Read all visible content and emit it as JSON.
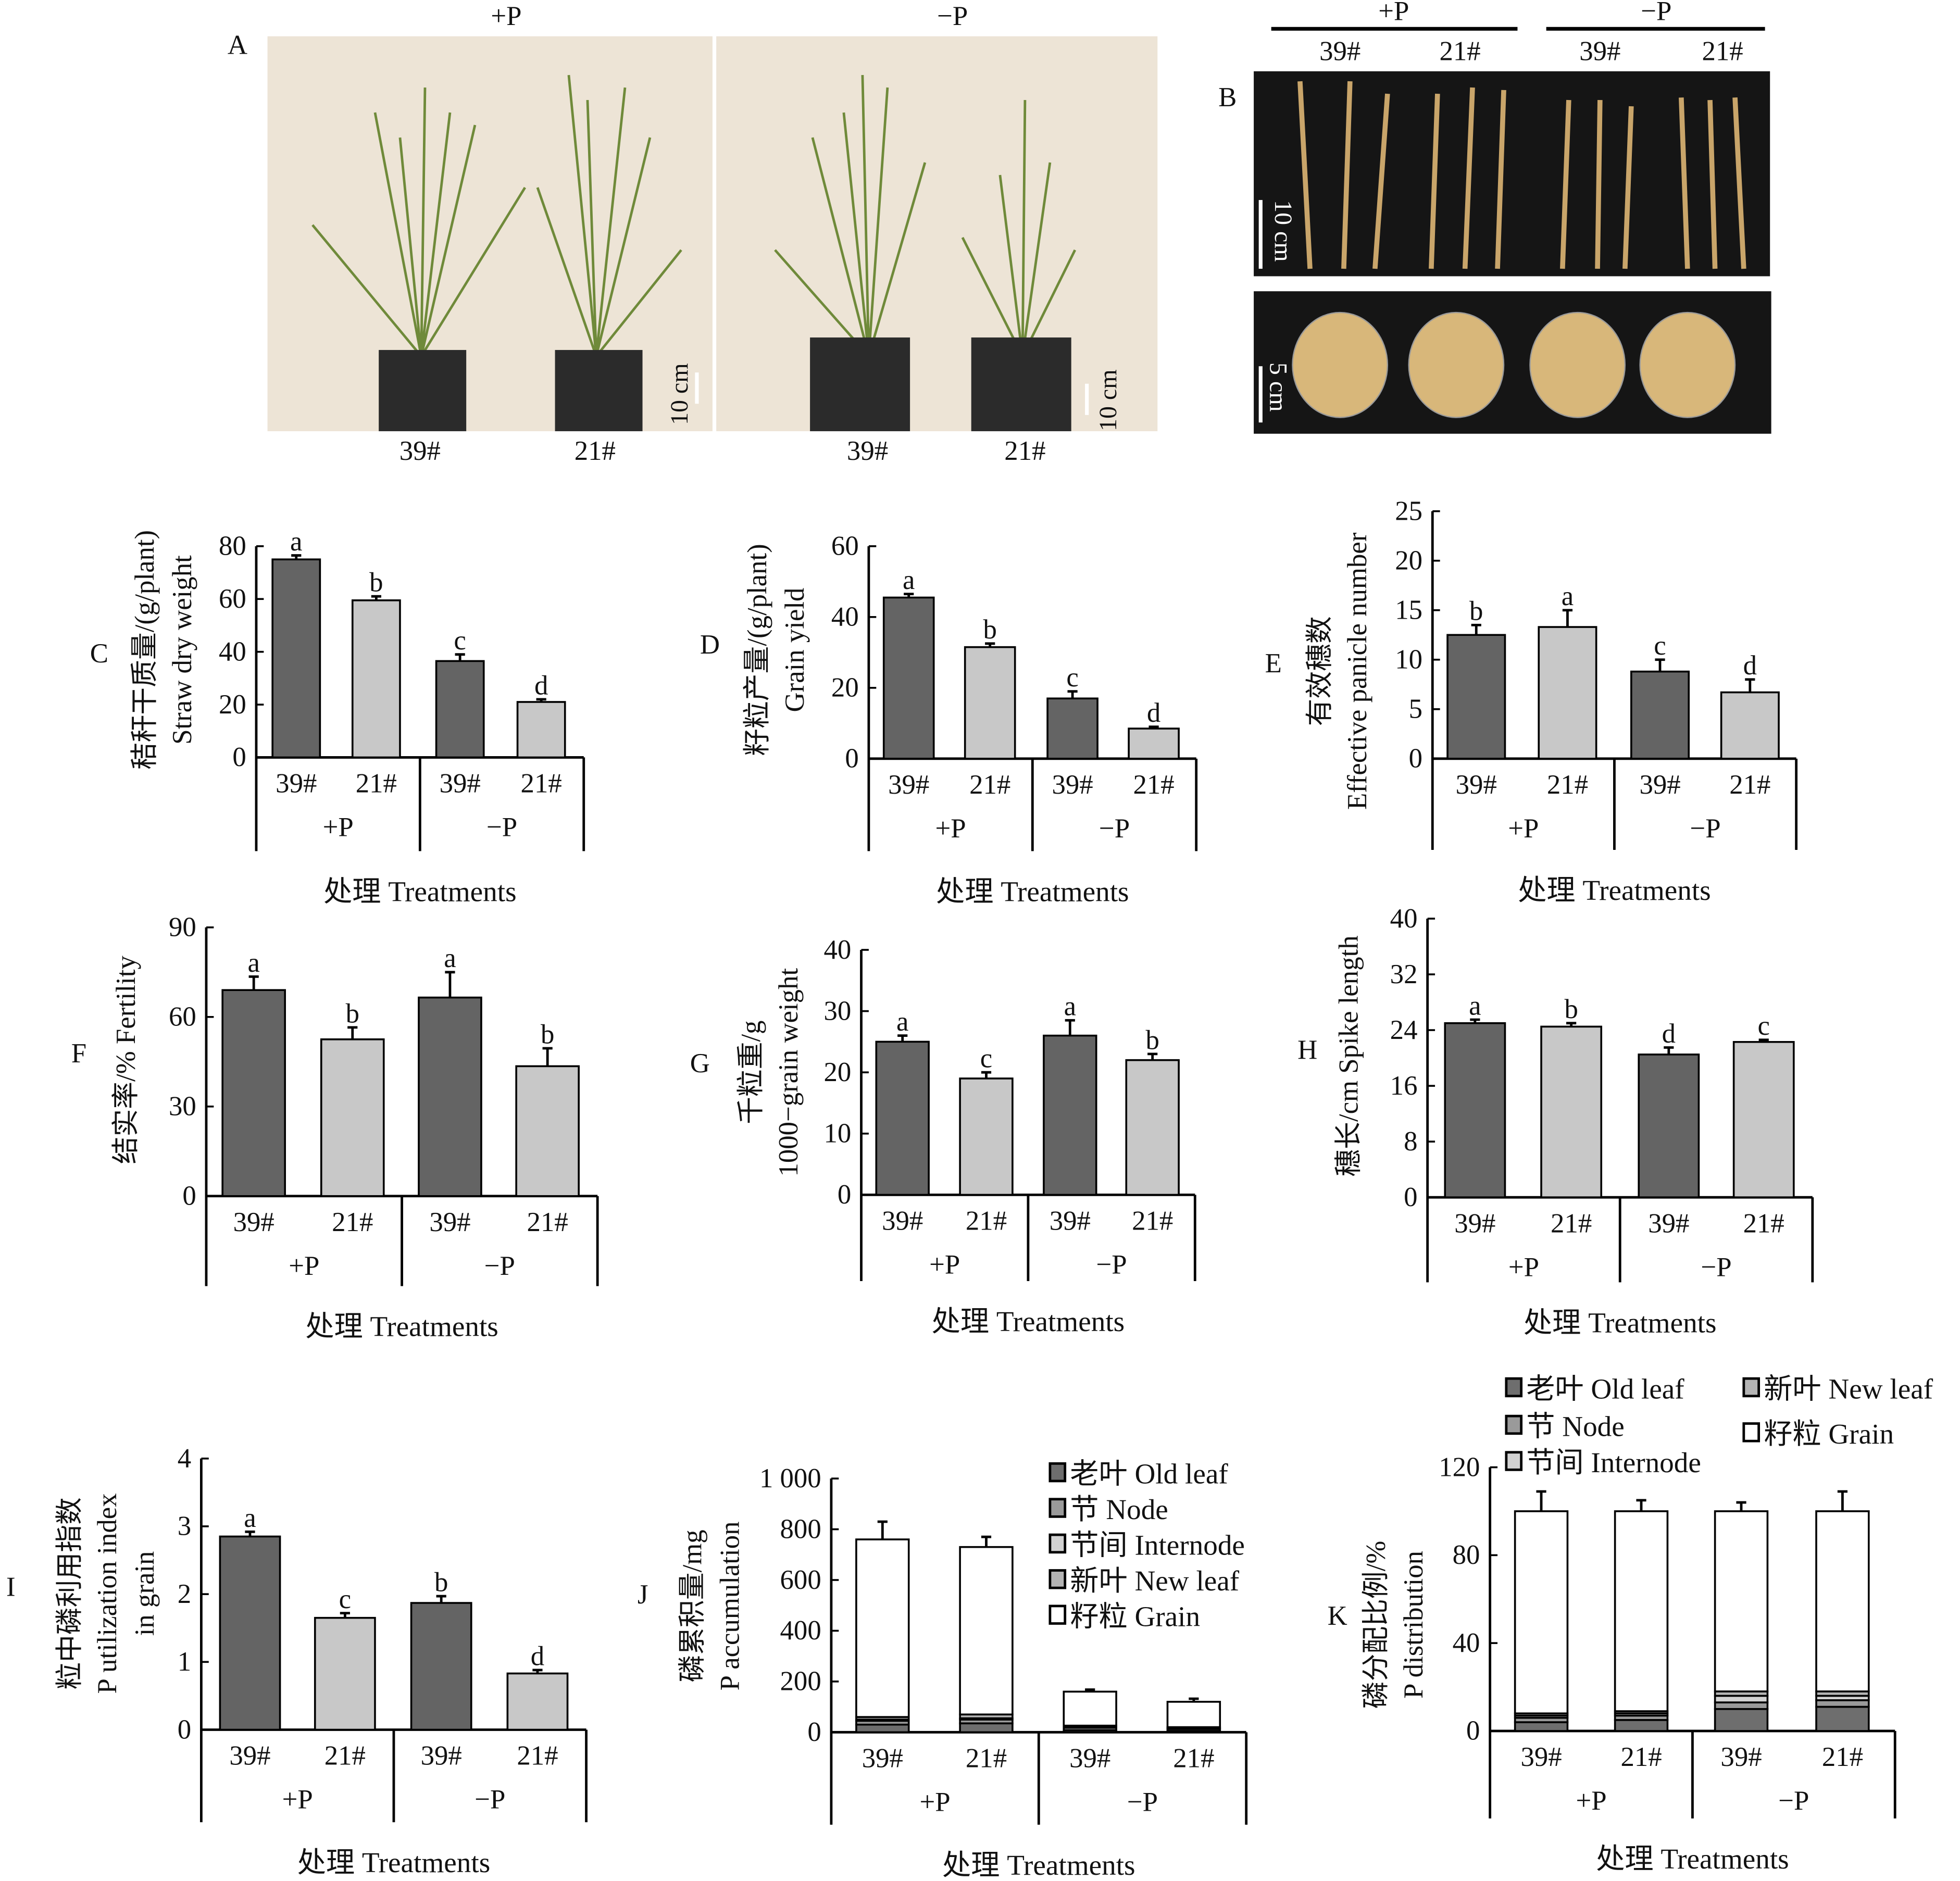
{
  "panel_a": {
    "letter": "A",
    "group_labels": [
      "+P",
      "−P"
    ],
    "plant_labels": [
      "39#",
      "21#",
      "39#",
      "21#"
    ],
    "scale_bar": "10 cm"
  },
  "panel_b": {
    "letter": "B",
    "group_labels": [
      "+P",
      "−P"
    ],
    "plant_labels": [
      "39#",
      "21#",
      "39#",
      "21#"
    ],
    "scale_bar_panicle": "10 cm",
    "scale_bar_grain": "5 cm"
  },
  "colors": {
    "dark": "#646464",
    "light": "#c8c8c8",
    "old_leaf": "#6e6e6e",
    "node": "#9a9a9a",
    "internode": "#d2d2d2",
    "new_leaf": "#b4b4b4",
    "grain": "#ffffff"
  },
  "chart_data": [
    {
      "letter": "C",
      "type": "bar",
      "ytitle": [
        "秸秆干质量/(g/plant)",
        "Straw dry weight"
      ],
      "xlabel": "处理 Treatments",
      "categories": [
        "39#",
        "21#",
        "39#",
        "21#"
      ],
      "groups": [
        "+P",
        "−P"
      ],
      "values": [
        75,
        59.5,
        36.5,
        21
      ],
      "errors": [
        1.5,
        1.5,
        2.5,
        1
      ],
      "letters": [
        "a",
        "b",
        "c",
        "d"
      ],
      "ylim": [
        0,
        80
      ],
      "yticks": [
        "0",
        "20",
        "40",
        "60",
        "80"
      ]
    },
    {
      "letter": "D",
      "type": "bar",
      "ytitle": [
        "籽粒产量/(g/plant)",
        "Grain yield"
      ],
      "xlabel": "处理 Treatments",
      "categories": [
        "39#",
        "21#",
        "39#",
        "21#"
      ],
      "groups": [
        "+P",
        "−P"
      ],
      "values": [
        45.5,
        31.5,
        17,
        8.5
      ],
      "errors": [
        1,
        1,
        2,
        0.5
      ],
      "letters": [
        "a",
        "b",
        "c",
        "d"
      ],
      "ylim": [
        0,
        60
      ],
      "yticks": [
        "0",
        "20",
        "40",
        "60"
      ]
    },
    {
      "letter": "E",
      "type": "bar",
      "ytitle": [
        "有效穗数",
        "Effective panicle number"
      ],
      "xlabel": "处理 Treatments",
      "categories": [
        "39#",
        "21#",
        "39#",
        "21#"
      ],
      "groups": [
        "+P",
        "−P"
      ],
      "values": [
        12.5,
        13.3,
        8.8,
        6.7
      ],
      "errors": [
        1,
        1.7,
        1.2,
        1.3
      ],
      "letters": [
        "b",
        "a",
        "c",
        "d"
      ],
      "ylim": [
        0,
        25
      ],
      "yticks": [
        "0",
        "5",
        "10",
        "15",
        "20",
        "25"
      ]
    },
    {
      "letter": "F",
      "type": "bar",
      "ytitle": [
        "结实率/%  Fertility"
      ],
      "xlabel": "处理 Treatments",
      "categories": [
        "39#",
        "21#",
        "39#",
        "21#"
      ],
      "groups": [
        "+P",
        "−P"
      ],
      "values": [
        69,
        52.5,
        66.5,
        43.5
      ],
      "errors": [
        4.5,
        4,
        8.5,
        6
      ],
      "letters": [
        "a",
        "b",
        "a",
        "b"
      ],
      "ylim": [
        0,
        90
      ],
      "yticks": [
        "0",
        "30",
        "60",
        "90"
      ]
    },
    {
      "letter": "G",
      "type": "bar",
      "ytitle": [
        "千粒重/g",
        "1000−grain weight"
      ],
      "xlabel": "处理 Treatments",
      "categories": [
        "39#",
        "21#",
        "39#",
        "21#"
      ],
      "groups": [
        "+P",
        "−P"
      ],
      "values": [
        25,
        19,
        26,
        22
      ],
      "errors": [
        1,
        1,
        2.5,
        1
      ],
      "letters": [
        "a",
        "c",
        "a",
        "b"
      ],
      "ylim": [
        0,
        40
      ],
      "yticks": [
        "0",
        "10",
        "20",
        "30",
        "40"
      ]
    },
    {
      "letter": "H",
      "type": "bar",
      "ytitle": [
        "穗长/cm Spike length"
      ],
      "xlabel": "处理 Treatments",
      "categories": [
        "39#",
        "21#",
        "39#",
        "21#"
      ],
      "groups": [
        "+P",
        "−P"
      ],
      "values": [
        25,
        24.5,
        20.5,
        22.3
      ],
      "errors": [
        0.5,
        0.5,
        1,
        0.3
      ],
      "letters": [
        "a",
        "b",
        "d",
        "c"
      ],
      "ylim": [
        0,
        40
      ],
      "yticks": [
        "0",
        "8",
        "16",
        "24",
        "32",
        "40"
      ]
    },
    {
      "letter": "I",
      "type": "bar",
      "ytitle": [
        "粒中磷利用指数",
        "P utilization index",
        "in grain"
      ],
      "xlabel": "处理 Treatments",
      "categories": [
        "39#",
        "21#",
        "39#",
        "21#"
      ],
      "groups": [
        "+P",
        "−P"
      ],
      "values": [
        2.85,
        1.65,
        1.87,
        0.83
      ],
      "errors": [
        0.07,
        0.07,
        0.1,
        0.05
      ],
      "letters": [
        "a",
        "c",
        "b",
        "d"
      ],
      "ylim": [
        0,
        4
      ],
      "yticks": [
        "0",
        "1",
        "2",
        "3",
        "4"
      ]
    },
    {
      "letter": "J",
      "type": "stacked_bar",
      "ytitle": [
        "磷累积量/mg",
        "P accumulation"
      ],
      "xlabel": "处理 Treatments",
      "categories": [
        "39#",
        "21#",
        "39#",
        "21#"
      ],
      "groups": [
        "+P",
        "−P"
      ],
      "legend": [
        "老叶 Old leaf",
        "节 Node",
        "节间 Internode",
        "新叶 New leaf",
        "籽粒 Grain"
      ],
      "series": [
        {
          "name": "Old leaf",
          "values": [
            30,
            35,
            8,
            5
          ]
        },
        {
          "name": "Node",
          "values": [
            15,
            15,
            10,
            8
          ]
        },
        {
          "name": "Internode",
          "values": [
            5,
            5,
            3,
            2
          ]
        },
        {
          "name": "New leaf",
          "values": [
            10,
            15,
            5,
            5
          ]
        },
        {
          "name": "Grain",
          "values": [
            700,
            660,
            134,
            100
          ]
        }
      ],
      "errors": [
        70,
        40,
        8,
        12
      ],
      "ylim": [
        0,
        1000
      ],
      "yticks": [
        "0",
        "200",
        "400",
        "600",
        "800",
        "1 000"
      ]
    },
    {
      "letter": "K",
      "type": "stacked_bar",
      "ytitle": [
        "磷分配比例/%",
        "P distribution"
      ],
      "xlabel": "处理 Treatments",
      "categories": [
        "39#",
        "21#",
        "39#",
        "21#"
      ],
      "groups": [
        "+P",
        "−P"
      ],
      "legend": [
        "老叶 Old leaf",
        "新叶 New leaf",
        "节 Node",
        "籽粒 Grain",
        "节间 Internode"
      ],
      "series": [
        {
          "name": "Old leaf",
          "values": [
            4,
            5,
            10,
            11
          ]
        },
        {
          "name": "Node",
          "values": [
            2,
            2,
            3,
            3
          ]
        },
        {
          "name": "Internode",
          "values": [
            1,
            1,
            3,
            2
          ]
        },
        {
          "name": "New leaf",
          "values": [
            1,
            1,
            2,
            2
          ]
        },
        {
          "name": "Grain",
          "values": [
            92,
            91,
            82,
            82
          ]
        }
      ],
      "errors": [
        9,
        5,
        4,
        9
      ],
      "ylim": [
        0,
        120
      ],
      "yticks": [
        "0",
        "40",
        "80",
        "120"
      ]
    }
  ]
}
